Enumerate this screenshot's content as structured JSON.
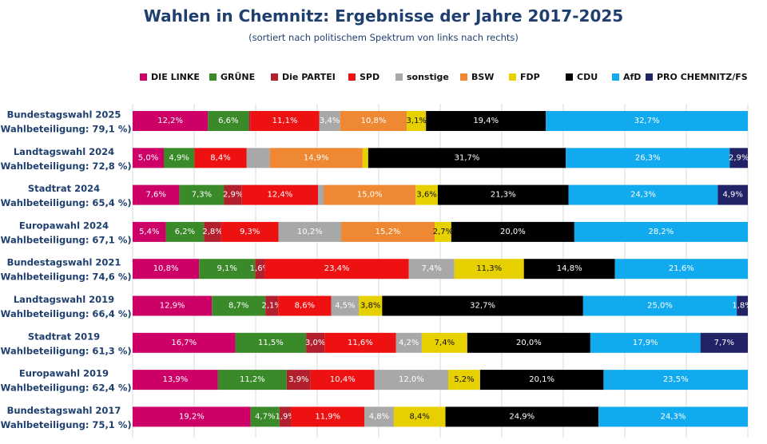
{
  "title": "Wahlen in Chemnitz: Ergebnisse der Jahre 2017-2025",
  "subtitle": "(sortiert nach politischem Spektrum von links nach rechts)",
  "chart_data": {
    "type": "bar",
    "orientation": "horizontal",
    "stacked": true,
    "normalized_100_percent": true,
    "grid": true,
    "legend_position": "top",
    "categories": [
      [
        "Bundestagswahl 2025",
        "(Wahlbeteiligung: 79,1 %)"
      ],
      [
        "Landtagswahl 2024",
        "(Wahlbeteiligung: 72,8 %)"
      ],
      [
        "Stadtrat 2024",
        "(Wahlbeteiligung: 65,4 %)"
      ],
      [
        "Europawahl 2024",
        "(Wahlbeteiligung: 67,1 %)"
      ],
      [
        "Bundestagswahl 2021",
        "(Wahlbeteiligung: 74,6 %)"
      ],
      [
        "Landtagswahl 2019",
        "(Wahlbeteiligung: 66,4 %)"
      ],
      [
        "Stadtrat 2019",
        "(Wahlbeteiligung: 61,3 %)"
      ],
      [
        "Europawahl 2019",
        "(Wahlbeteiligung: 62,4 %)"
      ],
      [
        "Bundestagswahl 2017",
        "(Wahlbeteiligung: 75,1 %)"
      ]
    ],
    "series": [
      {
        "name": "DIE LINKE",
        "color": "#cc0066",
        "values": [
          12.2,
          5.0,
          7.6,
          5.4,
          10.8,
          12.9,
          16.7,
          13.9,
          19.2
        ],
        "labels": [
          "12,2%",
          "5,0%",
          "7,6%",
          "5,4%",
          "10,8%",
          "12,9%",
          "16,7%",
          "13,9%",
          "19,2%"
        ]
      },
      {
        "name": "GRÜNE",
        "color": "#3a8a2a",
        "values": [
          6.6,
          4.9,
          7.3,
          6.2,
          9.1,
          8.7,
          11.5,
          11.2,
          4.7
        ],
        "labels": [
          "6,6%",
          "4,9%",
          "7,3%",
          "6,2%",
          "9,1%",
          "8,7%",
          "11,5%",
          "11,2%",
          "4,7%"
        ]
      },
      {
        "name": "Die PARTEI",
        "color": "#b2202e",
        "values": [
          0.3,
          0,
          2.9,
          2.8,
          1.6,
          2.1,
          3.0,
          3.9,
          1.9
        ],
        "labels": [
          "",
          "",
          "2,9%",
          "2,8%",
          "1,6%",
          "2,1%",
          "3,0%",
          "3,9%",
          "1,9%"
        ]
      },
      {
        "name": "SPD",
        "color": "#ee1111",
        "values": [
          11.1,
          8.4,
          12.4,
          9.3,
          23.4,
          8.6,
          11.6,
          10.4,
          11.9
        ],
        "labels": [
          "11,1%",
          "8,4%",
          "12,4%",
          "9,3%",
          "23,4%",
          "8,6%",
          "11,6%",
          "10,4%",
          "11,9%"
        ]
      },
      {
        "name": "sonstige",
        "color": "#a8a8a8",
        "values": [
          3.4,
          3.7,
          0.9,
          10.2,
          7.4,
          4.5,
          4.2,
          12.0,
          4.8
        ],
        "labels": [
          "3,4%",
          "",
          "",
          "10,2%",
          "7,4%",
          "4,5%",
          "4,2%",
          "12,0%",
          "4,8%"
        ]
      },
      {
        "name": "BSW",
        "color": "#ee8833",
        "values": [
          10.8,
          14.9,
          15.0,
          15.2,
          0,
          0,
          0,
          0,
          0
        ],
        "labels": [
          "10,8%",
          "14,9%",
          "15,0%",
          "15,2%",
          "",
          "",
          "",
          "",
          ""
        ]
      },
      {
        "name": "FDP",
        "color": "#e6d000",
        "values": [
          3.1,
          0.9,
          3.6,
          2.7,
          11.3,
          3.8,
          7.4,
          5.2,
          8.4
        ],
        "labels": [
          "3,1%",
          "",
          "3,6%",
          "2,7%",
          "11,3%",
          "3,8%",
          "7,4%",
          "5,2%",
          "8,4%"
        ]
      },
      {
        "name": "CDU",
        "color": "#000000",
        "values": [
          19.4,
          31.7,
          21.3,
          20.0,
          14.8,
          32.7,
          20.0,
          20.1,
          24.9
        ],
        "labels": [
          "19,4%",
          "31,7%",
          "21,3%",
          "20,0%",
          "14,8%",
          "32,7%",
          "20,0%",
          "20,1%",
          "24,9%"
        ]
      },
      {
        "name": "AfD",
        "color": "#11aaee",
        "values": [
          32.7,
          26.3,
          24.3,
          28.2,
          21.6,
          25.0,
          17.9,
          23.5,
          24.3
        ],
        "labels": [
          "32,7%",
          "26,3%",
          "24,3%",
          "28,2%",
          "21,6%",
          "25,0%",
          "17,9%",
          "23,5%",
          "24,3%"
        ]
      },
      {
        "name": "PRO CHEMNITZ/FS",
        "color": "#222266",
        "values": [
          0,
          2.9,
          4.9,
          0,
          0,
          1.8,
          7.7,
          0,
          0
        ],
        "labels": [
          "",
          "2,9%",
          "4,9%",
          "",
          "",
          "1,8%",
          "7,7%",
          "",
          ""
        ]
      }
    ],
    "xlim": [
      0,
      100
    ]
  }
}
